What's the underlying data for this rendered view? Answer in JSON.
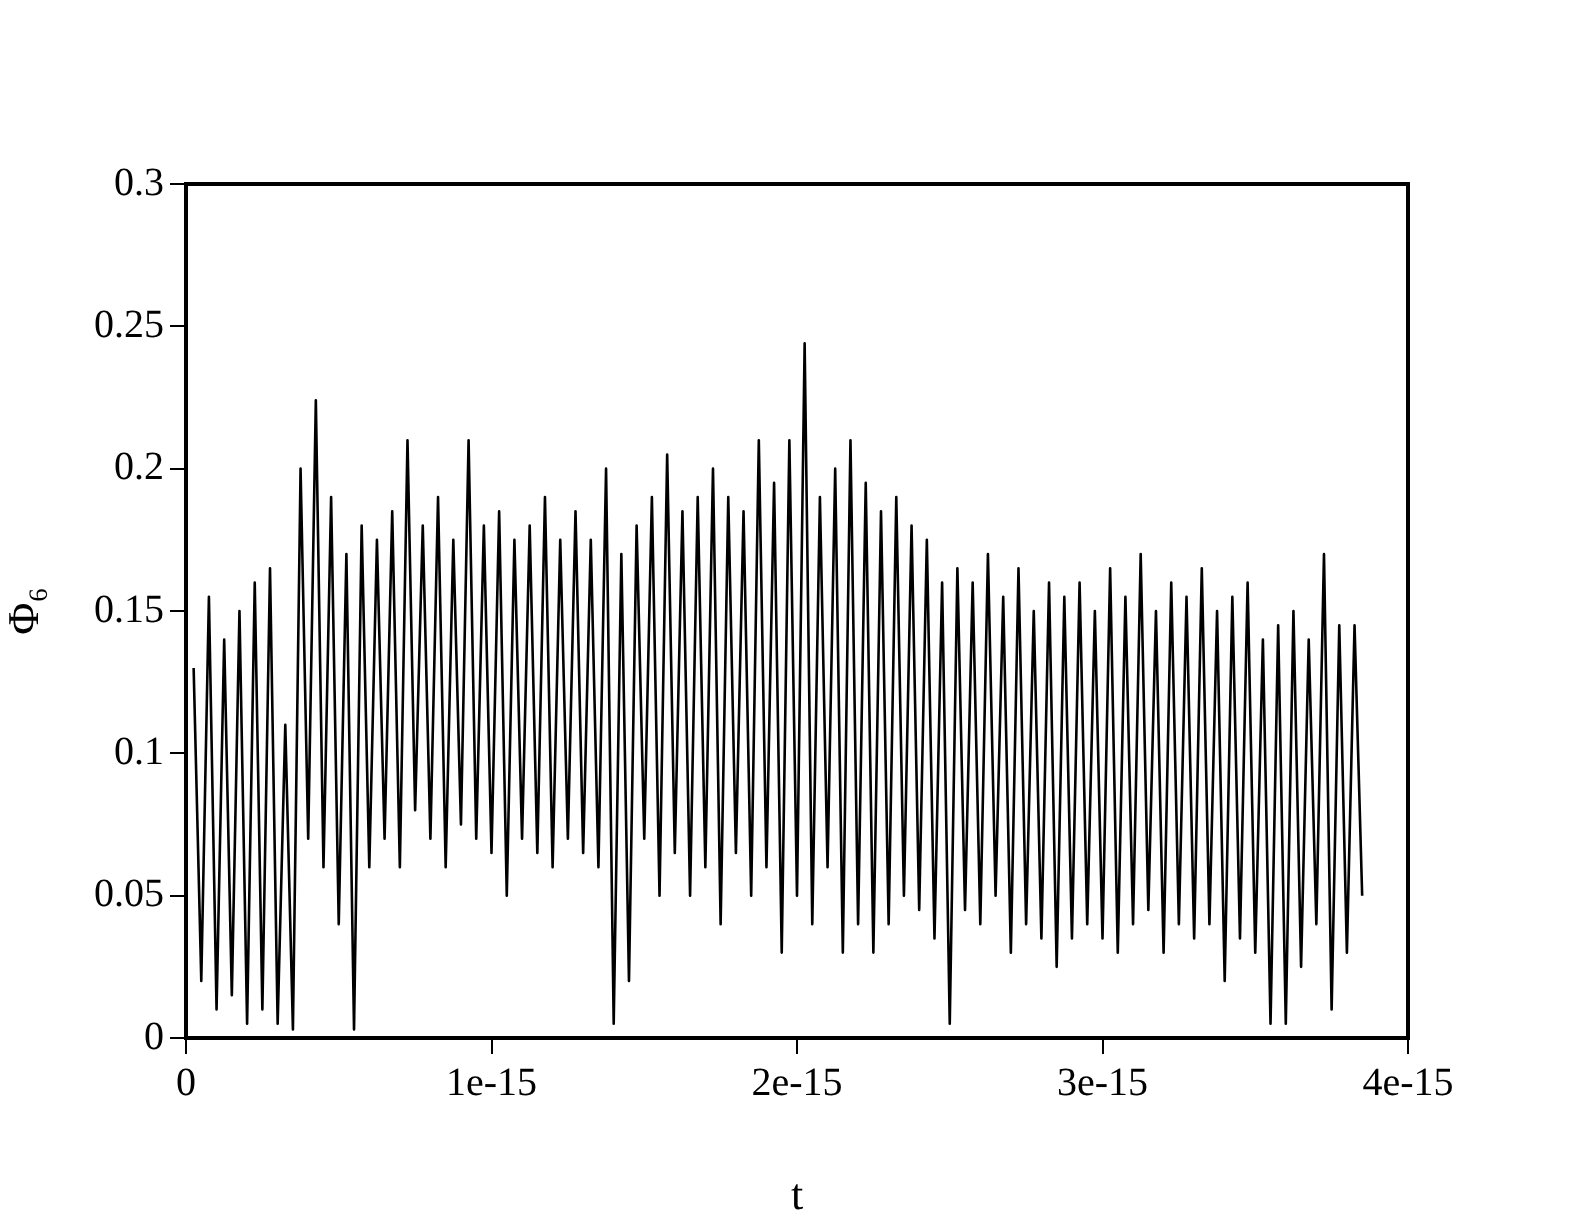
{
  "chart_data": {
    "type": "line",
    "xlabel": "t",
    "ylabel": "Φ₆",
    "xlim": [
      0,
      4e-15
    ],
    "xticks": [
      0,
      {
        "value": 1e-15,
        "label": "1e-15"
      },
      {
        "value": 2e-15,
        "label": "2e-15"
      },
      {
        "value": 3e-15,
        "label": "3e-15"
      },
      {
        "value": 4e-15,
        "label": "4e-15"
      }
    ],
    "ylim": [
      0,
      0.3
    ],
    "yticks": [
      0,
      0.05,
      0.1,
      0.15,
      0.2,
      0.25,
      0.3
    ],
    "grid": false,
    "legend": false,
    "marker": "none",
    "line_style": "solid",
    "series": [
      {
        "color": "#000000",
        "x": [
          2.5e-17,
          5e-17,
          7.5e-17,
          1e-16,
          1.25e-16,
          1.5e-16,
          1.75e-16,
          2e-16,
          2.25e-16,
          2.5e-16,
          2.75e-16,
          3e-16,
          3.25e-16,
          3.5e-16,
          3.75e-16,
          4e-16,
          4.25e-16,
          4.5e-16,
          4.75e-16,
          5e-16,
          5.25e-16,
          5.5e-16,
          5.75e-16,
          6e-16,
          6.25e-16,
          6.5e-16,
          6.75e-16,
          7e-16,
          7.25e-16,
          7.5e-16,
          7.75e-16,
          8e-16,
          8.25e-16,
          8.5e-16,
          8.75e-16,
          9e-16,
          9.25e-16,
          9.5e-16,
          9.75e-16,
          1e-15,
          1.025e-15,
          1.05e-15,
          1.075e-15,
          1.1e-15,
          1.125e-15,
          1.15e-15,
          1.175e-15,
          1.2e-15,
          1.225e-15,
          1.25e-15,
          1.275e-15,
          1.3e-15,
          1.325e-15,
          1.35e-15,
          1.375e-15,
          1.4e-15,
          1.425e-15,
          1.45e-15,
          1.475e-15,
          1.5e-15,
          1.525e-15,
          1.55e-15,
          1.575e-15,
          1.6e-15,
          1.625e-15,
          1.65e-15,
          1.675e-15,
          1.7e-15,
          1.725e-15,
          1.75e-15,
          1.775e-15,
          1.8e-15,
          1.825e-15,
          1.85e-15,
          1.875e-15,
          1.9e-15,
          1.925e-15,
          1.95e-15,
          1.975e-15,
          2e-15,
          2.025e-15,
          2.05e-15,
          2.075e-15,
          2.1e-15,
          2.125e-15,
          2.15e-15,
          2.175e-15,
          2.2e-15,
          2.225e-15,
          2.25e-15,
          2.275e-15,
          2.3e-15,
          2.325e-15,
          2.35e-15,
          2.375e-15,
          2.4e-15,
          2.425e-15,
          2.45e-15,
          2.475e-15,
          2.5e-15,
          2.525e-15,
          2.55e-15,
          2.575e-15,
          2.6e-15,
          2.625e-15,
          2.65e-15,
          2.675e-15,
          2.7e-15,
          2.725e-15,
          2.75e-15,
          2.775e-15,
          2.8e-15,
          2.825e-15,
          2.85e-15,
          2.875e-15,
          2.9e-15,
          2.925e-15,
          2.95e-15,
          2.975e-15,
          3e-15,
          3.025e-15,
          3.05e-15,
          3.075e-15,
          3.1e-15,
          3.125e-15,
          3.15e-15,
          3.175e-15,
          3.2e-15,
          3.225e-15,
          3.25e-15,
          3.275e-15,
          3.3e-15,
          3.325e-15,
          3.35e-15,
          3.375e-15,
          3.4e-15,
          3.425e-15,
          3.45e-15,
          3.475e-15,
          3.5e-15,
          3.525e-15,
          3.55e-15,
          3.575e-15,
          3.6e-15,
          3.625e-15,
          3.65e-15,
          3.675e-15,
          3.7e-15,
          3.725e-15,
          3.75e-15,
          3.775e-15,
          3.8e-15,
          3.825e-15,
          3.85e-15
        ],
        "values": [
          0.13,
          0.02,
          0.155,
          0.01,
          0.14,
          0.015,
          0.15,
          0.005,
          0.16,
          0.01,
          0.165,
          0.005,
          0.11,
          0.003,
          0.2,
          0.07,
          0.224,
          0.06,
          0.19,
          0.04,
          0.17,
          0.003,
          0.18,
          0.06,
          0.175,
          0.07,
          0.185,
          0.06,
          0.21,
          0.08,
          0.18,
          0.07,
          0.19,
          0.06,
          0.175,
          0.075,
          0.21,
          0.07,
          0.18,
          0.065,
          0.185,
          0.05,
          0.175,
          0.07,
          0.18,
          0.065,
          0.19,
          0.06,
          0.175,
          0.07,
          0.185,
          0.065,
          0.175,
          0.06,
          0.2,
          0.005,
          0.17,
          0.02,
          0.18,
          0.07,
          0.19,
          0.05,
          0.205,
          0.065,
          0.185,
          0.05,
          0.19,
          0.06,
          0.2,
          0.04,
          0.19,
          0.065,
          0.185,
          0.05,
          0.21,
          0.06,
          0.195,
          0.03,
          0.21,
          0.05,
          0.244,
          0.04,
          0.19,
          0.06,
          0.2,
          0.03,
          0.21,
          0.04,
          0.195,
          0.03,
          0.185,
          0.04,
          0.19,
          0.05,
          0.18,
          0.045,
          0.175,
          0.035,
          0.16,
          0.005,
          0.165,
          0.045,
          0.16,
          0.04,
          0.17,
          0.05,
          0.155,
          0.03,
          0.165,
          0.04,
          0.15,
          0.035,
          0.16,
          0.025,
          0.155,
          0.035,
          0.16,
          0.04,
          0.15,
          0.035,
          0.165,
          0.03,
          0.155,
          0.04,
          0.17,
          0.045,
          0.15,
          0.03,
          0.16,
          0.04,
          0.155,
          0.035,
          0.165,
          0.04,
          0.15,
          0.02,
          0.155,
          0.035,
          0.16,
          0.03,
          0.14,
          0.005,
          0.145,
          0.005,
          0.15,
          0.025,
          0.14,
          0.04,
          0.17,
          0.01,
          0.145,
          0.03,
          0.145,
          0.05
        ]
      }
    ]
  }
}
